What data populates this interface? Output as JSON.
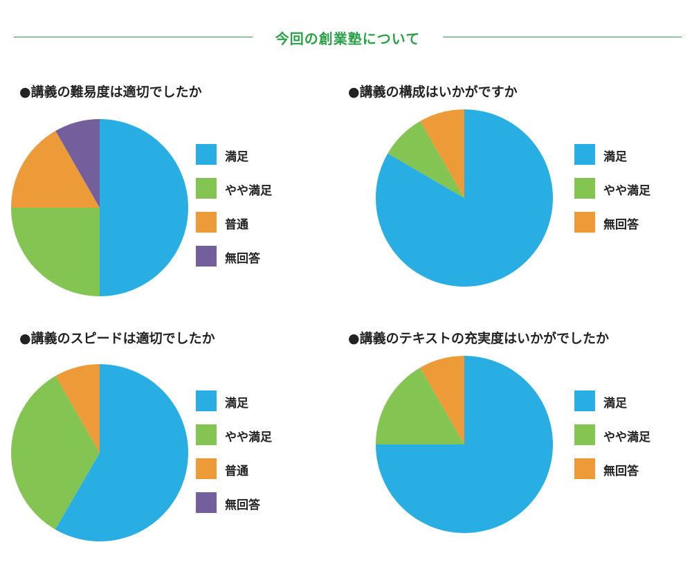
{
  "header": {
    "title": "今回の創業塾について"
  },
  "colors": {
    "header_green": "#2aa147",
    "satisfied": "#29aee3",
    "somewhat": "#84c452",
    "normal": "#ec9b38",
    "no_answer": "#725f9c"
  },
  "chart_data": [
    {
      "type": "pie",
      "title": "●講義の難易度は適切でしたか",
      "categories": [
        "満足",
        "やや満足",
        "普通",
        "無回答"
      ],
      "values": [
        50,
        25,
        16.7,
        8.3
      ],
      "colors": [
        "#29aee3",
        "#84c452",
        "#ec9b38",
        "#725f9c"
      ],
      "legend": "right"
    },
    {
      "type": "pie",
      "title": "●講義の構成はいかがですか",
      "categories": [
        "満足",
        "やや満足",
        "無回答"
      ],
      "values": [
        83.3,
        8.3,
        8.3
      ],
      "colors": [
        "#29aee3",
        "#84c452",
        "#ec9b38"
      ],
      "legend": "right"
    },
    {
      "type": "pie",
      "title": "●講義のスピードは適切でしたか",
      "categories": [
        "満足",
        "やや満足",
        "普通",
        "無回答"
      ],
      "values": [
        58.3,
        33.3,
        8.3,
        0
      ],
      "colors": [
        "#29aee3",
        "#84c452",
        "#ec9b38",
        "#725f9c"
      ],
      "legend": "right"
    },
    {
      "type": "pie",
      "title": "●講義のテキストの充実度はいかがでしたか",
      "categories": [
        "満足",
        "やや満足",
        "無回答"
      ],
      "values": [
        75,
        16.7,
        8.3
      ],
      "colors": [
        "#29aee3",
        "#84c452",
        "#ec9b38"
      ],
      "legend": "right"
    }
  ]
}
